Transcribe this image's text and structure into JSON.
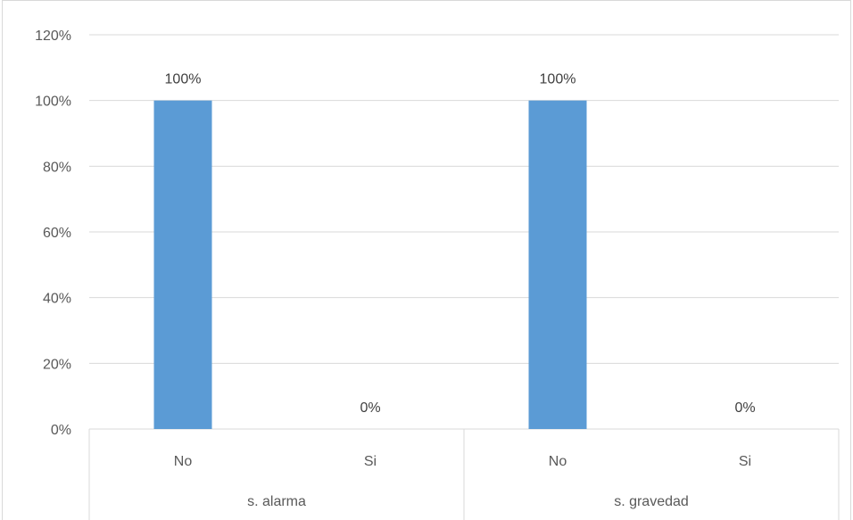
{
  "chart_data": {
    "type": "bar",
    "groups": [
      {
        "group": "s. alarma",
        "categories": [
          "No",
          "Si"
        ],
        "values": [
          100,
          0
        ]
      },
      {
        "group": "s. gravedad",
        "categories": [
          "No",
          "Si"
        ],
        "values": [
          100,
          0
        ]
      }
    ],
    "data_labels": [
      "100%",
      "0%",
      "100%",
      "0%"
    ],
    "y_ticks": [
      "0%",
      "20%",
      "40%",
      "60%",
      "80%",
      "100%",
      "120%"
    ],
    "ylim": [
      0,
      120
    ],
    "y_unit": "%",
    "grid": true,
    "legend": "none",
    "bar_color": "#5b9bd5",
    "title": "",
    "xlabel": "",
    "ylabel": ""
  }
}
